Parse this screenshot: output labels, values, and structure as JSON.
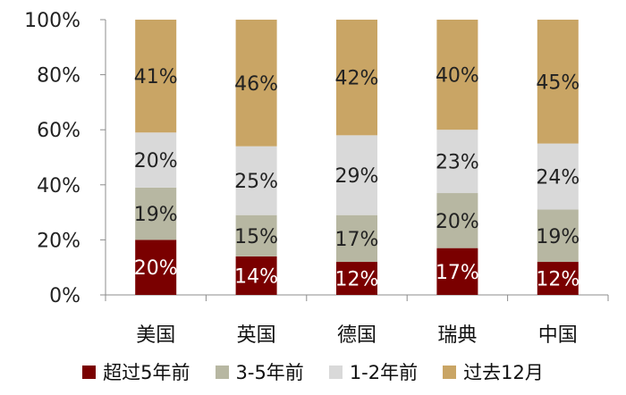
{
  "chart_data": {
    "type": "bar",
    "stacked": true,
    "percent_stacked": true,
    "categories": [
      "美国",
      "英国",
      "德国",
      "瑞典",
      "中国"
    ],
    "series": [
      {
        "name": "超过5年前",
        "color": "#7A0000",
        "values": [
          20,
          14,
          12,
          17,
          12
        ],
        "labels": [
          "20%",
          "14%",
          "12%",
          "17%",
          "12%"
        ]
      },
      {
        "name": "3-5年前",
        "color": "#B7B7A2",
        "values": [
          19,
          15,
          17,
          20,
          19
        ],
        "labels": [
          "19%",
          "15%",
          "17%",
          "20%",
          "19%"
        ]
      },
      {
        "name": "1-2年前",
        "color": "#D9D9D9",
        "values": [
          20,
          25,
          29,
          23,
          24
        ],
        "labels": [
          "20%",
          "25%",
          "29%",
          "23%",
          "24%"
        ]
      },
      {
        "name": "过去12月",
        "color": "#C9A565",
        "values": [
          41,
          46,
          42,
          40,
          45
        ],
        "labels": [
          "41%",
          "46%",
          "42%",
          "40%",
          "45%"
        ]
      }
    ],
    "yticks": [
      "0%",
      "20%",
      "40%",
      "60%",
      "80%",
      "100%"
    ],
    "ylim": [
      0,
      100
    ],
    "grid": false,
    "legend_position": "bottom"
  }
}
